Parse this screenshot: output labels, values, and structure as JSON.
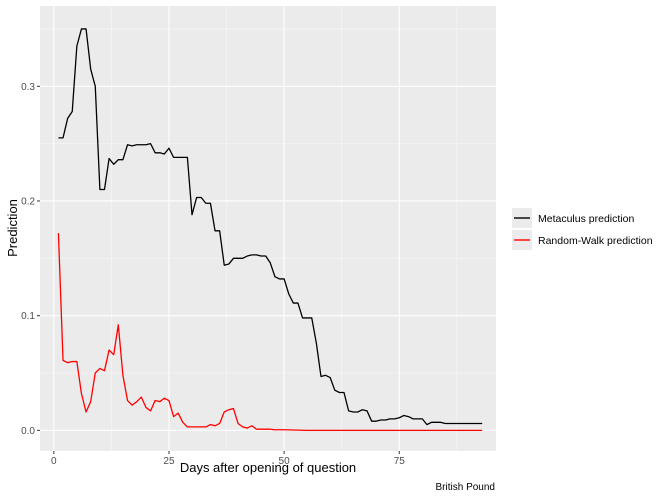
{
  "chart_data": {
    "type": "line",
    "title": "",
    "xlabel": "Days after opening of question",
    "ylabel": "Prediction",
    "caption": "British Pound",
    "xlim": [
      -3,
      96
    ],
    "ylim": [
      -0.018,
      0.37
    ],
    "xticks": [
      0,
      25,
      50,
      75
    ],
    "yticks": [
      0.0,
      0.1,
      0.2,
      0.3
    ],
    "xtick_labels": [
      "0",
      "25",
      "50",
      "75"
    ],
    "ytick_labels": [
      "0.0",
      "0.1",
      "0.2",
      "0.3"
    ],
    "grid": true,
    "legend_position": "right",
    "series": [
      {
        "name": "Metaculus prediction",
        "color": "#000000",
        "points": [
          [
            1,
            0.255
          ],
          [
            2,
            0.255
          ],
          [
            3,
            0.272
          ],
          [
            4,
            0.278
          ],
          [
            5,
            0.335
          ],
          [
            6,
            0.35
          ],
          [
            7,
            0.35
          ],
          [
            8,
            0.315
          ],
          [
            9,
            0.3
          ],
          [
            10,
            0.21
          ],
          [
            11,
            0.21
          ],
          [
            12,
            0.237
          ],
          [
            13,
            0.232
          ],
          [
            14,
            0.236
          ],
          [
            15,
            0.236
          ],
          [
            16,
            0.249
          ],
          [
            17,
            0.248
          ],
          [
            18,
            0.249
          ],
          [
            19,
            0.249
          ],
          [
            20,
            0.249
          ],
          [
            21,
            0.25
          ],
          [
            22,
            0.242
          ],
          [
            23,
            0.242
          ],
          [
            24,
            0.241
          ],
          [
            25,
            0.246
          ],
          [
            26,
            0.238
          ],
          [
            27,
            0.238
          ],
          [
            28,
            0.238
          ],
          [
            29,
            0.238
          ],
          [
            30,
            0.188
          ],
          [
            31,
            0.203
          ],
          [
            32,
            0.203
          ],
          [
            33,
            0.198
          ],
          [
            34,
            0.198
          ],
          [
            35,
            0.174
          ],
          [
            36,
            0.174
          ],
          [
            37,
            0.144
          ],
          [
            38,
            0.145
          ],
          [
            39,
            0.15
          ],
          [
            40,
            0.15
          ],
          [
            41,
            0.15
          ],
          [
            42,
            0.152
          ],
          [
            43,
            0.153
          ],
          [
            44,
            0.153
          ],
          [
            45,
            0.152
          ],
          [
            46,
            0.152
          ],
          [
            47,
            0.146
          ],
          [
            48,
            0.134
          ],
          [
            49,
            0.132
          ],
          [
            50,
            0.132
          ],
          [
            51,
            0.119
          ],
          [
            52,
            0.111
          ],
          [
            53,
            0.111
          ],
          [
            54,
            0.098
          ],
          [
            55,
            0.098
          ],
          [
            56,
            0.098
          ],
          [
            57,
            0.076
          ],
          [
            58,
            0.047
          ],
          [
            59,
            0.048
          ],
          [
            60,
            0.046
          ],
          [
            61,
            0.035
          ],
          [
            62,
            0.033
          ],
          [
            63,
            0.033
          ],
          [
            64,
            0.017
          ],
          [
            65,
            0.016
          ],
          [
            66,
            0.016
          ],
          [
            67,
            0.018
          ],
          [
            68,
            0.017
          ],
          [
            69,
            0.008
          ],
          [
            70,
            0.008
          ],
          [
            71,
            0.009
          ],
          [
            72,
            0.009
          ],
          [
            73,
            0.01
          ],
          [
            74,
            0.01
          ],
          [
            75,
            0.011
          ],
          [
            76,
            0.013
          ],
          [
            77,
            0.012
          ],
          [
            78,
            0.01
          ],
          [
            79,
            0.01
          ],
          [
            80,
            0.01
          ],
          [
            81,
            0.005
          ],
          [
            82,
            0.007
          ],
          [
            83,
            0.007
          ],
          [
            84,
            0.007
          ],
          [
            85,
            0.006
          ],
          [
            86,
            0.006
          ],
          [
            87,
            0.006
          ],
          [
            88,
            0.006
          ],
          [
            89,
            0.006
          ],
          [
            90,
            0.006
          ],
          [
            91,
            0.006
          ],
          [
            92,
            0.006
          ],
          [
            93,
            0.006
          ]
        ]
      },
      {
        "name": "Random-Walk prediction",
        "color": "#ff0000",
        "points": [
          [
            1,
            0.172
          ],
          [
            2,
            0.061
          ],
          [
            3,
            0.059
          ],
          [
            4,
            0.06
          ],
          [
            5,
            0.06
          ],
          [
            6,
            0.032
          ],
          [
            7,
            0.016
          ],
          [
            8,
            0.025
          ],
          [
            9,
            0.05
          ],
          [
            10,
            0.054
          ],
          [
            11,
            0.052
          ],
          [
            12,
            0.07
          ],
          [
            13,
            0.066
          ],
          [
            14,
            0.092
          ],
          [
            15,
            0.048
          ],
          [
            16,
            0.026
          ],
          [
            17,
            0.022
          ],
          [
            18,
            0.025
          ],
          [
            19,
            0.029
          ],
          [
            20,
            0.02
          ],
          [
            21,
            0.017
          ],
          [
            22,
            0.026
          ],
          [
            23,
            0.025
          ],
          [
            24,
            0.028
          ],
          [
            25,
            0.026
          ],
          [
            26,
            0.012
          ],
          [
            27,
            0.015
          ],
          [
            28,
            0.007
          ],
          [
            29,
            0.003
          ],
          [
            30,
            0.003
          ],
          [
            31,
            0.003
          ],
          [
            32,
            0.003
          ],
          [
            33,
            0.003
          ],
          [
            34,
            0.005
          ],
          [
            35,
            0.004
          ],
          [
            36,
            0.006
          ],
          [
            37,
            0.016
          ],
          [
            38,
            0.018
          ],
          [
            39,
            0.019
          ],
          [
            40,
            0.006
          ],
          [
            41,
            0.003
          ],
          [
            42,
            0.002
          ],
          [
            43,
            0.004
          ],
          [
            44,
            0.001
          ],
          [
            45,
            0.001
          ],
          [
            46,
            0.001
          ],
          [
            47,
            0.001
          ],
          [
            48,
            0.0005
          ],
          [
            50,
            0.0005
          ],
          [
            55,
            0.0
          ],
          [
            60,
            0.0
          ],
          [
            65,
            0.0
          ],
          [
            70,
            0.0
          ],
          [
            75,
            0.0
          ],
          [
            80,
            0.0
          ],
          [
            85,
            0.0
          ],
          [
            90,
            0.0
          ],
          [
            93,
            0.0
          ]
        ]
      }
    ]
  }
}
